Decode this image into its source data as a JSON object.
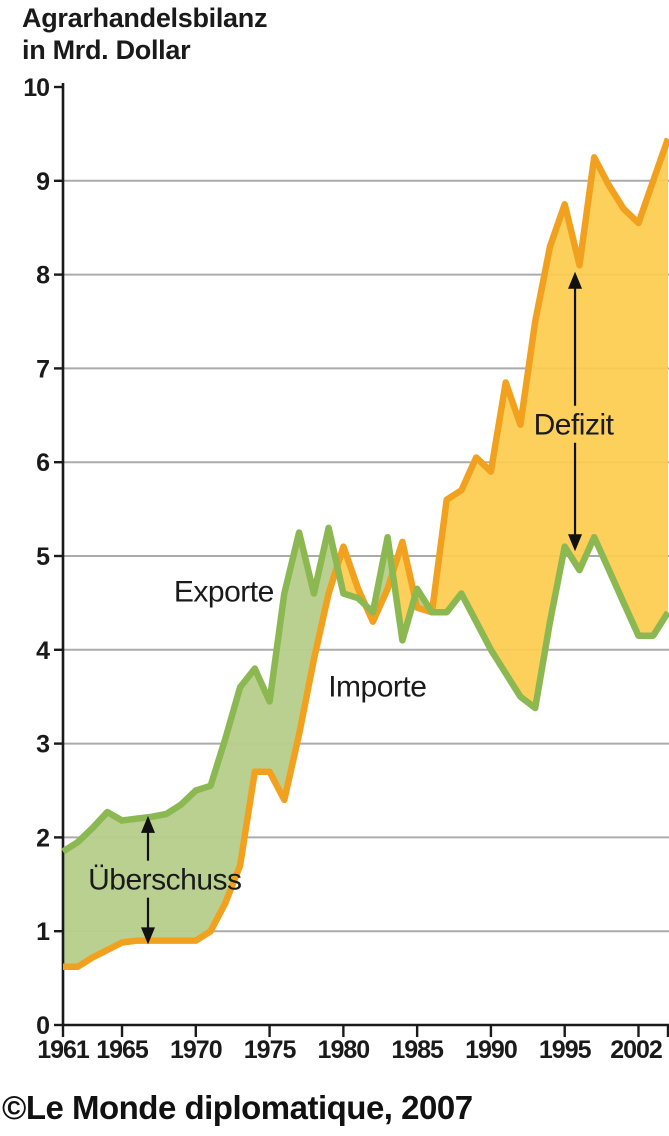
{
  "title": {
    "line1": "Agrarhandelsbilanz",
    "line2": "in Mrd. Dollar"
  },
  "credit": "©Le Monde diplomatique, 2007",
  "chart_data": {
    "type": "area",
    "title": "Agrarhandelsbilanz in Mrd. Dollar",
    "xlabel": "",
    "ylabel": "Mrd. Dollar",
    "xlim": [
      1961,
      2002
    ],
    "ylim": [
      0,
      10
    ],
    "grid": "horizontal",
    "grid_color": "#ABABAB",
    "axis_color": "#1a1a1a",
    "x": [
      1961,
      1962,
      1963,
      1964,
      1965,
      1966,
      1967,
      1968,
      1969,
      1970,
      1971,
      1972,
      1973,
      1974,
      1975,
      1976,
      1977,
      1978,
      1979,
      1980,
      1981,
      1982,
      1983,
      1984,
      1985,
      1986,
      1987,
      1988,
      1989,
      1990,
      1991,
      1992,
      1993,
      1994,
      1995,
      1996,
      1997,
      1998,
      1999,
      2000,
      2001,
      2002
    ],
    "series": [
      {
        "name": "Exporte",
        "line_color": "#8CB852",
        "fill_color": "#B7CE8C",
        "values": [
          1.85,
          1.95,
          2.1,
          2.27,
          2.18,
          2.2,
          2.22,
          2.25,
          2.35,
          2.5,
          2.55,
          3.05,
          3.6,
          3.8,
          3.45,
          4.6,
          5.25,
          4.6,
          5.3,
          4.6,
          4.55,
          4.4,
          5.2,
          4.1,
          4.65,
          4.4,
          4.4,
          4.6,
          4.3,
          4.0,
          3.75,
          3.5,
          3.38,
          4.3,
          5.1,
          4.85,
          5.2,
          4.85,
          4.5,
          4.15,
          4.15,
          4.4
        ]
      },
      {
        "name": "Importe",
        "line_color": "#F2A11E",
        "fill_color": "#FCCC4F",
        "values": [
          0.62,
          0.62,
          0.72,
          0.8,
          0.88,
          0.9,
          0.9,
          0.9,
          0.9,
          0.9,
          1.0,
          1.3,
          1.7,
          2.7,
          2.7,
          2.4,
          3.1,
          3.9,
          4.6,
          5.1,
          4.65,
          4.3,
          4.65,
          5.15,
          4.45,
          4.4,
          5.6,
          5.7,
          6.05,
          5.9,
          6.85,
          6.4,
          7.5,
          8.3,
          8.75,
          8.1,
          9.25,
          8.95,
          8.7,
          8.55,
          9.0,
          9.45
        ]
      }
    ],
    "yticks": [
      0,
      1,
      2,
      3,
      4,
      5,
      6,
      7,
      8,
      9,
      10
    ],
    "xticks": [
      {
        "year": 1961,
        "label": "1961"
      },
      {
        "year": 1965,
        "label": "1965"
      },
      {
        "year": 1970,
        "label": "1970"
      },
      {
        "year": 1975,
        "label": "1975"
      },
      {
        "year": 1980,
        "label": "1980"
      },
      {
        "year": 1985,
        "label": "1985"
      },
      {
        "year": 1990,
        "label": "1990"
      },
      {
        "year": 1995,
        "label": "1995"
      },
      {
        "year": 2000,
        "label": ""
      },
      {
        "year": 2002,
        "label": "2002"
      }
    ],
    "annotations": {
      "series_labels": [
        {
          "series": 0,
          "x": 1971.9,
          "y": 4.63
        },
        {
          "series": 1,
          "x": 1982.3,
          "y": 3.62
        }
      ],
      "arrows": [
        {
          "text": "Überschuss",
          "text_x": 1967.9,
          "text_y": 1.56,
          "arrow_x": 1966.76,
          "top": 2.23,
          "bottom": 0.86
        },
        {
          "text": "Defizit",
          "text_x": 1995.6,
          "text_y": 6.41,
          "arrow_x": 1995.7,
          "top": 8.03,
          "bottom": 5.05
        }
      ]
    }
  }
}
